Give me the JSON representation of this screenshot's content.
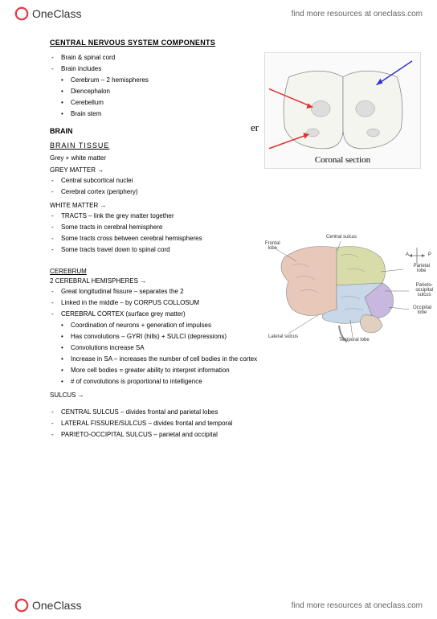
{
  "brand": {
    "name": "OneClass",
    "tagline": "find more resources at oneclass.com"
  },
  "doc": {
    "title": "CENTRAL NERVOUS SYSTEM COMPONENTS",
    "intro_dash": [
      "Brain & spinal cord",
      "Brain includes"
    ],
    "intro_dot": [
      "Cerebrum – 2 hemispheres",
      "Diencephalon",
      "Cerebellum",
      "Brain stem"
    ],
    "h_brain": "BRAIN",
    "h_tissue": "BRAIN  TISSUE",
    "tissue_note": "Grey + white matter",
    "h_grey": "GREY MATTER →",
    "grey_dash": [
      "Central subcortical nuclei",
      "Cerebral cortex (periphery)"
    ],
    "h_white": "WHITE MATTER →",
    "white_dash": [
      "TRACTS – link the grey matter together",
      "Some tracts in cerebral hemisphere",
      "Some tracts cross between cerebral hemispheres",
      "Some tracts travel down to spinal cord"
    ],
    "h_cerebrum": "CEREBRUM",
    "h_hemispheres": "2 CEREBRAL HEMISPHERES →",
    "cer_dash_a": [
      "Great longitudinal fissure – separates the 2",
      "Linked in the middle – by CORPUS COLLOSUM",
      "CEREBRAL CORTEX (surface grey matter)"
    ],
    "cer_dot": [
      "Coordination of neurons + generation of impulses",
      "Has convolutions – GYRI (hills) + SULCI (depressions)",
      "Convolutions increase SA",
      "Increase in SA – increases the number of cell bodies in the cortex",
      "More cell bodies = greater ability to interpret information",
      "# of convolutions is proportional to intelligence"
    ],
    "h_sulcus": "SULCUS →",
    "sulcus_dash": [
      "CENTRAL SULCUS – divides frontal and parietal lobes",
      "LATERAL FISSURE/SULCUS – divides frontal and temporal",
      "PARIETO-OCCIPITAL SULCUS – parietal and occipital"
    ],
    "fig1_caption": "Coronal section",
    "fig1_side": "er",
    "fig2_labels": {
      "frontal": "Frontal\nlobe",
      "central": "Central sulcus",
      "parietal": "Parietal\nlobe",
      "pos": "Parieto-\noccipital\nsulcus",
      "occipital": "Occipital\nlobe",
      "lateral": "Lateral sulcus",
      "temporal": "Temporal lobe",
      "a": "A",
      "p": "P"
    }
  },
  "colors": {
    "frontal": "#e8c8b8",
    "parietal": "#d8dca8",
    "temporal": "#c8d8e8",
    "occipital": "#c8b8e0",
    "outline": "#888888",
    "coronal_bg": "#f5f5f0",
    "arrow_red": "#e03030",
    "arrow_blue": "#3030d0"
  }
}
